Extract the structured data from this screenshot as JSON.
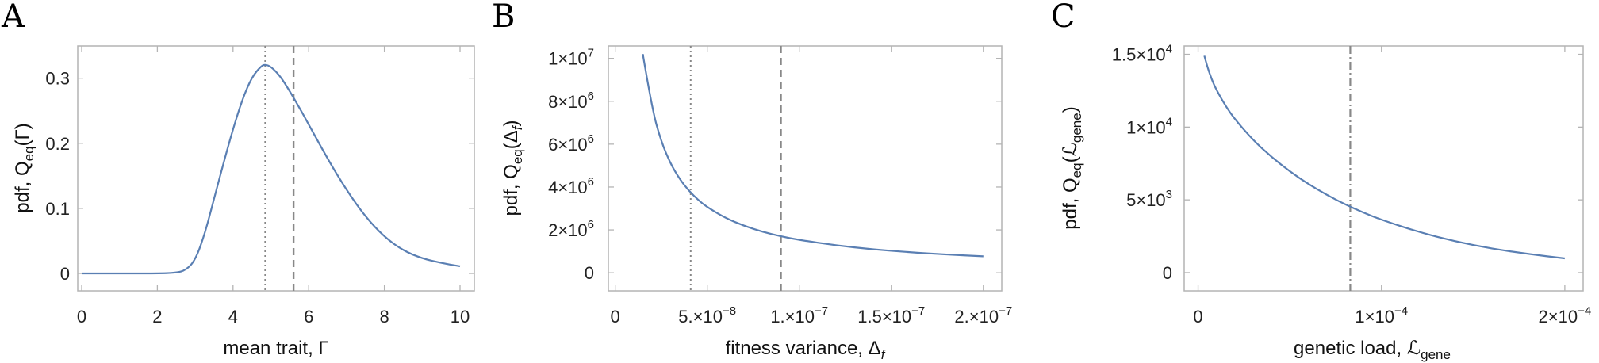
{
  "chart_data": [
    {
      "panel_letter": "A",
      "type": "line",
      "xlabel": "mean trait, Γ",
      "ylabel": "pdf, Q",
      "ylabel_sub": "eq",
      "ylabel_arg": "(Γ)",
      "xlim": [
        0,
        10
      ],
      "ylim": [
        0,
        0.33
      ],
      "x_ticks": [
        0,
        2,
        4,
        6,
        8,
        10
      ],
      "x_tick_labels": [
        "0",
        "2",
        "4",
        "6",
        "8",
        "10"
      ],
      "y_ticks": [
        0,
        0.1,
        0.2,
        0.3
      ],
      "y_tick_labels": [
        "0",
        "0.1",
        "0.2",
        "0.3"
      ],
      "series": [
        {
          "x": [
            0,
            1,
            2,
            2.5,
            2.75,
            3.0,
            3.25,
            3.5,
            3.75,
            4.0,
            4.25,
            4.5,
            4.75,
            4.85,
            5.0,
            5.25,
            5.5,
            5.75,
            6.0,
            6.5,
            7.0,
            7.5,
            8.0,
            8.5,
            9.0,
            9.5,
            10.0
          ],
          "y": [
            0,
            0,
            0,
            0.001,
            0.005,
            0.02,
            0.06,
            0.115,
            0.17,
            0.222,
            0.268,
            0.302,
            0.319,
            0.321,
            0.318,
            0.303,
            0.28,
            0.255,
            0.229,
            0.176,
            0.128,
            0.087,
            0.056,
            0.035,
            0.023,
            0.016,
            0.011
          ]
        }
      ],
      "ref_lines": [
        {
          "x": 4.85,
          "style": "dotted"
        },
        {
          "x": 5.6,
          "style": "dashed"
        }
      ]
    },
    {
      "panel_letter": "B",
      "type": "line",
      "xlabel": "fitness variance, Δ",
      "xlabel_sub": "f",
      "ylabel": "pdf, Q",
      "ylabel_sub": "eq",
      "ylabel_arg": "(Δ",
      "ylabel_arg_sub": "f",
      "ylabel_arg_close": ")",
      "xlim": [
        -2e-09,
        2.1e-07
      ],
      "ylim": [
        -400000.0,
        10800000.0
      ],
      "x_ticks": [
        0,
        5e-08,
        1e-07,
        1.5e-07,
        2e-07
      ],
      "x_tick_labels": [
        {
          "m": "0",
          "e": ""
        },
        {
          "m": "5.×10",
          "e": "−8"
        },
        {
          "m": "1.×10",
          "e": "−7"
        },
        {
          "m": "1.5×10",
          "e": "−7"
        },
        {
          "m": "2.×10",
          "e": "−7"
        }
      ],
      "y_ticks": [
        0,
        2000000.0,
        4000000.0,
        6000000.0,
        8000000.0,
        10000000.0
      ],
      "y_tick_labels": [
        {
          "m": "0",
          "e": ""
        },
        {
          "m": "2×10",
          "e": "6"
        },
        {
          "m": "4×10",
          "e": "6"
        },
        {
          "m": "6×10",
          "e": "6"
        },
        {
          "m": "8×10",
          "e": "6"
        },
        {
          "m": "1×10",
          "e": "7"
        }
      ],
      "series": [
        {
          "x": [
            1.5e-08,
            2e-08,
            2.5e-08,
            3e-08,
            3.5e-08,
            4e-08,
            4.5e-08,
            5e-08,
            6e-08,
            7e-08,
            8e-08,
            9e-08,
            1e-07,
            1.2e-07,
            1.4e-07,
            1.6e-07,
            1.8e-07,
            2e-07
          ],
          "y": [
            10200000,
            7650000,
            6120000,
            5100000,
            4370000,
            3830000,
            3400000,
            3060000,
            2550000,
            2190000,
            1910000,
            1700000,
            1530000,
            1280000,
            1090000,
            960000,
            850000,
            770000
          ]
        }
      ],
      "ref_lines": [
        {
          "x": 4.1e-08,
          "style": "dotted"
        },
        {
          "x": 9e-08,
          "style": "dashed"
        }
      ]
    },
    {
      "panel_letter": "C",
      "type": "line",
      "xlabel": "genetic load, ℒ",
      "xlabel_sub": "gene",
      "ylabel": "pdf, Q",
      "ylabel_sub": "eq",
      "ylabel_arg": "(ℒ",
      "ylabel_arg_sub": "gene",
      "ylabel_arg_close": ")",
      "xlim": [
        -5e-06,
        0.00021
      ],
      "ylim": [
        -600,
        15900
      ],
      "x_ticks": [
        0,
        0.0001,
        0.0002
      ],
      "x_tick_labels": [
        {
          "m": "0",
          "e": ""
        },
        {
          "m": "1×10",
          "e": "−4"
        },
        {
          "m": "2×10",
          "e": "−4"
        }
      ],
      "y_ticks": [
        0,
        5000,
        10000,
        15000
      ],
      "y_tick_labels": [
        {
          "m": "0",
          "e": ""
        },
        {
          "m": "5×10",
          "e": "3"
        },
        {
          "m": "1×10",
          "e": "4"
        },
        {
          "m": "1.5×10",
          "e": "4"
        }
      ],
      "series": [
        {
          "x": [
            3.4e-06,
            5e-06,
            7.5e-06,
            1e-05,
            1.5e-05,
            2e-05,
            3e-05,
            4e-05,
            5e-05,
            6e-05,
            7e-05,
            8e-05,
            9e-05,
            0.0001,
            0.00012,
            0.00014,
            0.00016,
            0.00018,
            0.0002
          ],
          "y": [
            14900,
            14150,
            13250,
            12550,
            11450,
            10550,
            9100,
            7950,
            6950,
            6100,
            5350,
            4700,
            4130,
            3630,
            2800,
            2150,
            1650,
            1280,
            980
          ]
        }
      ],
      "ref_lines": [
        {
          "x": 8.3e-05,
          "style": "dashdot"
        }
      ]
    }
  ]
}
